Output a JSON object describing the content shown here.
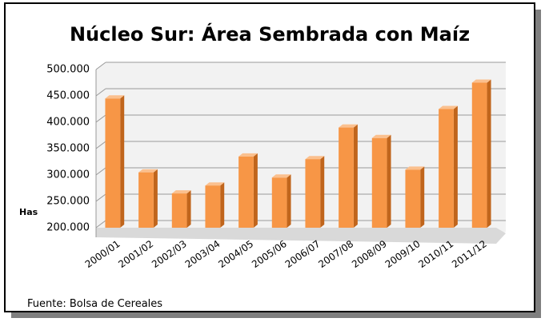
{
  "chart_data": {
    "type": "bar",
    "title": "Núcleo Sur: Área Sembrada con Maíz",
    "y_label": "Has",
    "source": "Fuente: Bolsa de Cereales",
    "categories": [
      "2000/01",
      "2001/02",
      "2002/03",
      "2003/04",
      "2004/05",
      "2005/06",
      "2006/07",
      "2007/08",
      "2008/09",
      "2009/10",
      "2010/11",
      "2011/12"
    ],
    "values": [
      445000,
      305000,
      265000,
      280000,
      335000,
      295000,
      330000,
      390000,
      370000,
      310000,
      425000,
      475000
    ],
    "color": "#f79646",
    "ylim": [
      200000,
      500000
    ],
    "yticks": [
      {
        "value": 200000,
        "label": "200.000"
      },
      {
        "value": 250000,
        "label": "250.000"
      },
      {
        "value": 300000,
        "label": "300.000"
      },
      {
        "value": 350000,
        "label": "350.000"
      },
      {
        "value": 400000,
        "label": "400.000"
      },
      {
        "value": 450000,
        "label": "450.000"
      },
      {
        "value": 500000,
        "label": "500.000"
      }
    ],
    "grid": true
  }
}
